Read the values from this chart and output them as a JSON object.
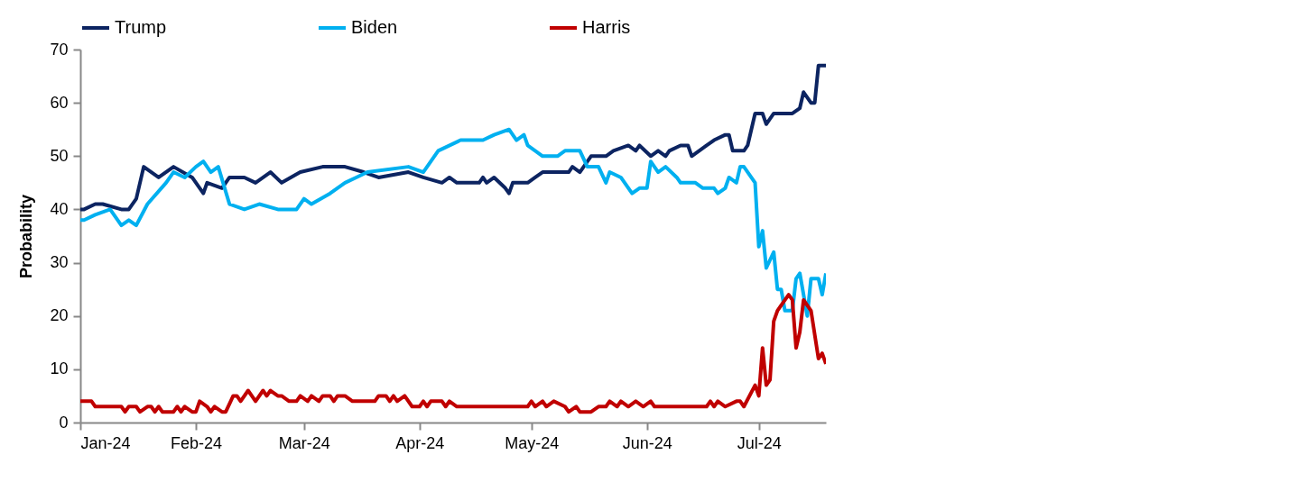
{
  "chart_data": {
    "type": "line",
    "ylabel": "Probability",
    "legend": "top",
    "grid": false,
    "ylim": [
      0,
      70
    ],
    "yticks": [
      0,
      10,
      20,
      30,
      40,
      50,
      60,
      70
    ],
    "xlim": [
      "2024-01-01",
      "2024-07-19"
    ],
    "xticks": [
      {
        "value": "2024-01-01",
        "label": "Jan-24"
      },
      {
        "value": "2024-02-01",
        "label": "Feb-24"
      },
      {
        "value": "2024-03-01",
        "label": "Mar-24"
      },
      {
        "value": "2024-04-01",
        "label": "Apr-24"
      },
      {
        "value": "2024-05-01",
        "label": "May-24"
      },
      {
        "value": "2024-06-01",
        "label": "Jun-24"
      },
      {
        "value": "2024-07-01",
        "label": "Jul-24"
      }
    ],
    "series": [
      {
        "name": "Trump",
        "color": "#0c2461",
        "x": [
          "2024-01-01",
          "2024-01-02",
          "2024-01-05",
          "2024-01-07",
          "2024-01-12",
          "2024-01-14",
          "2024-01-16",
          "2024-01-18",
          "2024-01-22",
          "2024-01-26",
          "2024-01-31",
          "2024-02-03",
          "2024-02-04",
          "2024-02-08",
          "2024-02-10",
          "2024-02-14",
          "2024-02-17",
          "2024-02-21",
          "2024-02-24",
          "2024-02-29",
          "2024-03-06",
          "2024-03-12",
          "2024-03-17",
          "2024-03-21",
          "2024-03-29",
          "2024-04-02",
          "2024-04-07",
          "2024-04-09",
          "2024-04-11",
          "2024-04-17",
          "2024-04-18",
          "2024-04-19",
          "2024-04-21",
          "2024-04-24",
          "2024-04-25",
          "2024-04-26",
          "2024-04-30",
          "2024-05-02",
          "2024-05-04",
          "2024-05-11",
          "2024-05-12",
          "2024-05-14",
          "2024-05-17",
          "2024-05-21",
          "2024-05-23",
          "2024-05-27",
          "2024-05-29",
          "2024-05-30",
          "2024-06-02",
          "2024-06-04",
          "2024-06-06",
          "2024-06-07",
          "2024-06-10",
          "2024-06-12",
          "2024-06-13",
          "2024-06-17",
          "2024-06-19",
          "2024-06-22",
          "2024-06-23",
          "2024-06-24",
          "2024-06-27",
          "2024-06-28",
          "2024-06-30",
          "2024-07-02",
          "2024-07-03",
          "2024-07-05",
          "2024-07-10",
          "2024-07-12",
          "2024-07-13",
          "2024-07-15",
          "2024-07-16",
          "2024-07-17",
          "2024-07-19"
        ],
        "values": [
          40,
          40,
          41,
          41,
          40,
          40,
          42,
          48,
          46,
          48,
          46,
          43,
          45,
          44,
          46,
          46,
          45,
          47,
          45,
          47,
          48,
          48,
          47,
          46,
          47,
          46,
          45,
          46,
          45,
          45,
          46,
          45,
          46,
          44,
          43,
          45,
          45,
          46,
          47,
          47,
          48,
          47,
          50,
          50,
          51,
          52,
          51,
          52,
          50,
          51,
          50,
          51,
          52,
          52,
          50,
          52,
          53,
          54,
          54,
          51,
          51,
          52,
          58,
          58,
          56,
          58,
          58,
          59,
          62,
          60,
          60,
          67,
          67
        ]
      },
      {
        "name": "Biden",
        "color": "#00b0f0",
        "x": [
          "2024-01-01",
          "2024-01-02",
          "2024-01-05",
          "2024-01-09",
          "2024-01-12",
          "2024-01-14",
          "2024-01-16",
          "2024-01-19",
          "2024-01-24",
          "2024-01-26",
          "2024-01-29",
          "2024-02-01",
          "2024-02-03",
          "2024-02-05",
          "2024-02-07",
          "2024-02-10",
          "2024-02-14",
          "2024-02-18",
          "2024-02-23",
          "2024-02-28",
          "2024-03-01",
          "2024-03-03",
          "2024-03-08",
          "2024-03-12",
          "2024-03-15",
          "2024-03-18",
          "2024-03-29",
          "2024-04-02",
          "2024-04-06",
          "2024-04-12",
          "2024-04-18",
          "2024-04-21",
          "2024-04-25",
          "2024-04-27",
          "2024-04-29",
          "2024-04-30",
          "2024-05-04",
          "2024-05-08",
          "2024-05-10",
          "2024-05-14",
          "2024-05-16",
          "2024-05-19",
          "2024-05-21",
          "2024-05-22",
          "2024-05-25",
          "2024-05-28",
          "2024-05-30",
          "2024-06-01",
          "2024-06-02",
          "2024-06-04",
          "2024-06-06",
          "2024-06-09",
          "2024-06-10",
          "2024-06-14",
          "2024-06-16",
          "2024-06-19",
          "2024-06-20",
          "2024-06-22",
          "2024-06-23",
          "2024-06-25",
          "2024-06-26",
          "2024-06-27",
          "2024-06-30",
          "2024-07-01",
          "2024-07-02",
          "2024-07-03",
          "2024-07-05",
          "2024-07-06",
          "2024-07-07",
          "2024-07-08",
          "2024-07-10",
          "2024-07-11",
          "2024-07-12",
          "2024-07-14",
          "2024-07-15",
          "2024-07-17",
          "2024-07-18",
          "2024-07-19"
        ],
        "values": [
          38,
          38,
          39,
          40,
          37,
          38,
          37,
          41,
          45,
          47,
          46,
          48,
          49,
          47,
          48,
          41,
          40,
          41,
          40,
          40,
          42,
          41,
          43,
          45,
          46,
          47,
          48,
          47,
          51,
          53,
          53,
          54,
          55,
          53,
          54,
          52,
          50,
          50,
          51,
          51,
          48,
          48,
          45,
          47,
          46,
          43,
          44,
          44,
          49,
          47,
          48,
          46,
          45,
          45,
          44,
          44,
          43,
          44,
          46,
          45,
          48,
          48,
          45,
          33,
          36,
          29,
          32,
          25,
          25,
          21,
          21,
          27,
          28,
          20,
          27,
          27,
          24,
          28
        ]
      },
      {
        "name": "Harris",
        "color": "#c00000",
        "x": [
          "2024-01-01",
          "2024-01-04",
          "2024-01-05",
          "2024-01-12",
          "2024-01-13",
          "2024-01-14",
          "2024-01-16",
          "2024-01-17",
          "2024-01-19",
          "2024-01-20",
          "2024-01-21",
          "2024-01-22",
          "2024-01-23",
          "2024-01-26",
          "2024-01-27",
          "2024-01-28",
          "2024-01-29",
          "2024-01-31",
          "2024-02-01",
          "2024-02-02",
          "2024-02-04",
          "2024-02-05",
          "2024-02-06",
          "2024-02-08",
          "2024-02-09",
          "2024-02-11",
          "2024-02-12",
          "2024-02-13",
          "2024-02-15",
          "2024-02-16",
          "2024-02-17",
          "2024-02-19",
          "2024-02-20",
          "2024-02-21",
          "2024-02-23",
          "2024-02-24",
          "2024-02-26",
          "2024-02-28",
          "2024-02-29",
          "2024-03-02",
          "2024-03-03",
          "2024-03-05",
          "2024-03-06",
          "2024-03-08",
          "2024-03-09",
          "2024-03-10",
          "2024-03-12",
          "2024-03-14",
          "2024-03-20",
          "2024-03-21",
          "2024-03-23",
          "2024-03-24",
          "2024-03-25",
          "2024-03-26",
          "2024-03-28",
          "2024-03-30",
          "2024-04-01",
          "2024-04-02",
          "2024-04-03",
          "2024-04-04",
          "2024-04-07",
          "2024-04-08",
          "2024-04-09",
          "2024-04-11",
          "2024-04-30",
          "2024-05-01",
          "2024-05-02",
          "2024-05-04",
          "2024-05-05",
          "2024-05-07",
          "2024-05-10",
          "2024-05-11",
          "2024-05-13",
          "2024-05-14",
          "2024-05-17",
          "2024-05-19",
          "2024-05-21",
          "2024-05-22",
          "2024-05-24",
          "2024-05-25",
          "2024-05-27",
          "2024-05-29",
          "2024-05-31",
          "2024-06-02",
          "2024-06-03",
          "2024-06-17",
          "2024-06-18",
          "2024-06-19",
          "2024-06-20",
          "2024-06-22",
          "2024-06-25",
          "2024-06-26",
          "2024-06-27",
          "2024-06-30",
          "2024-07-01",
          "2024-07-02",
          "2024-07-03",
          "2024-07-04",
          "2024-07-05",
          "2024-07-06",
          "2024-07-07",
          "2024-07-09",
          "2024-07-10",
          "2024-07-11",
          "2024-07-12",
          "2024-07-13",
          "2024-07-14",
          "2024-07-15",
          "2024-07-17",
          "2024-07-18",
          "2024-07-19"
        ],
        "values": [
          4,
          4,
          3,
          3,
          2,
          3,
          3,
          2,
          3,
          3,
          2,
          3,
          2,
          2,
          3,
          2,
          3,
          2,
          2,
          4,
          3,
          2,
          3,
          2,
          2,
          5,
          5,
          4,
          6,
          5,
          4,
          6,
          5,
          6,
          5,
          5,
          4,
          4,
          5,
          4,
          5,
          4,
          5,
          5,
          4,
          5,
          5,
          4,
          4,
          5,
          5,
          4,
          5,
          4,
          5,
          3,
          3,
          4,
          3,
          4,
          4,
          3,
          4,
          3,
          3,
          4,
          3,
          4,
          3,
          4,
          3,
          2,
          3,
          2,
          2,
          3,
          3,
          4,
          3,
          4,
          3,
          4,
          3,
          4,
          3,
          3,
          4,
          3,
          4,
          3,
          4,
          4,
          3,
          7,
          5,
          14,
          7,
          8,
          19,
          21,
          22,
          24,
          23,
          14,
          17,
          23,
          22,
          21,
          12,
          13,
          11
        ]
      }
    ]
  }
}
